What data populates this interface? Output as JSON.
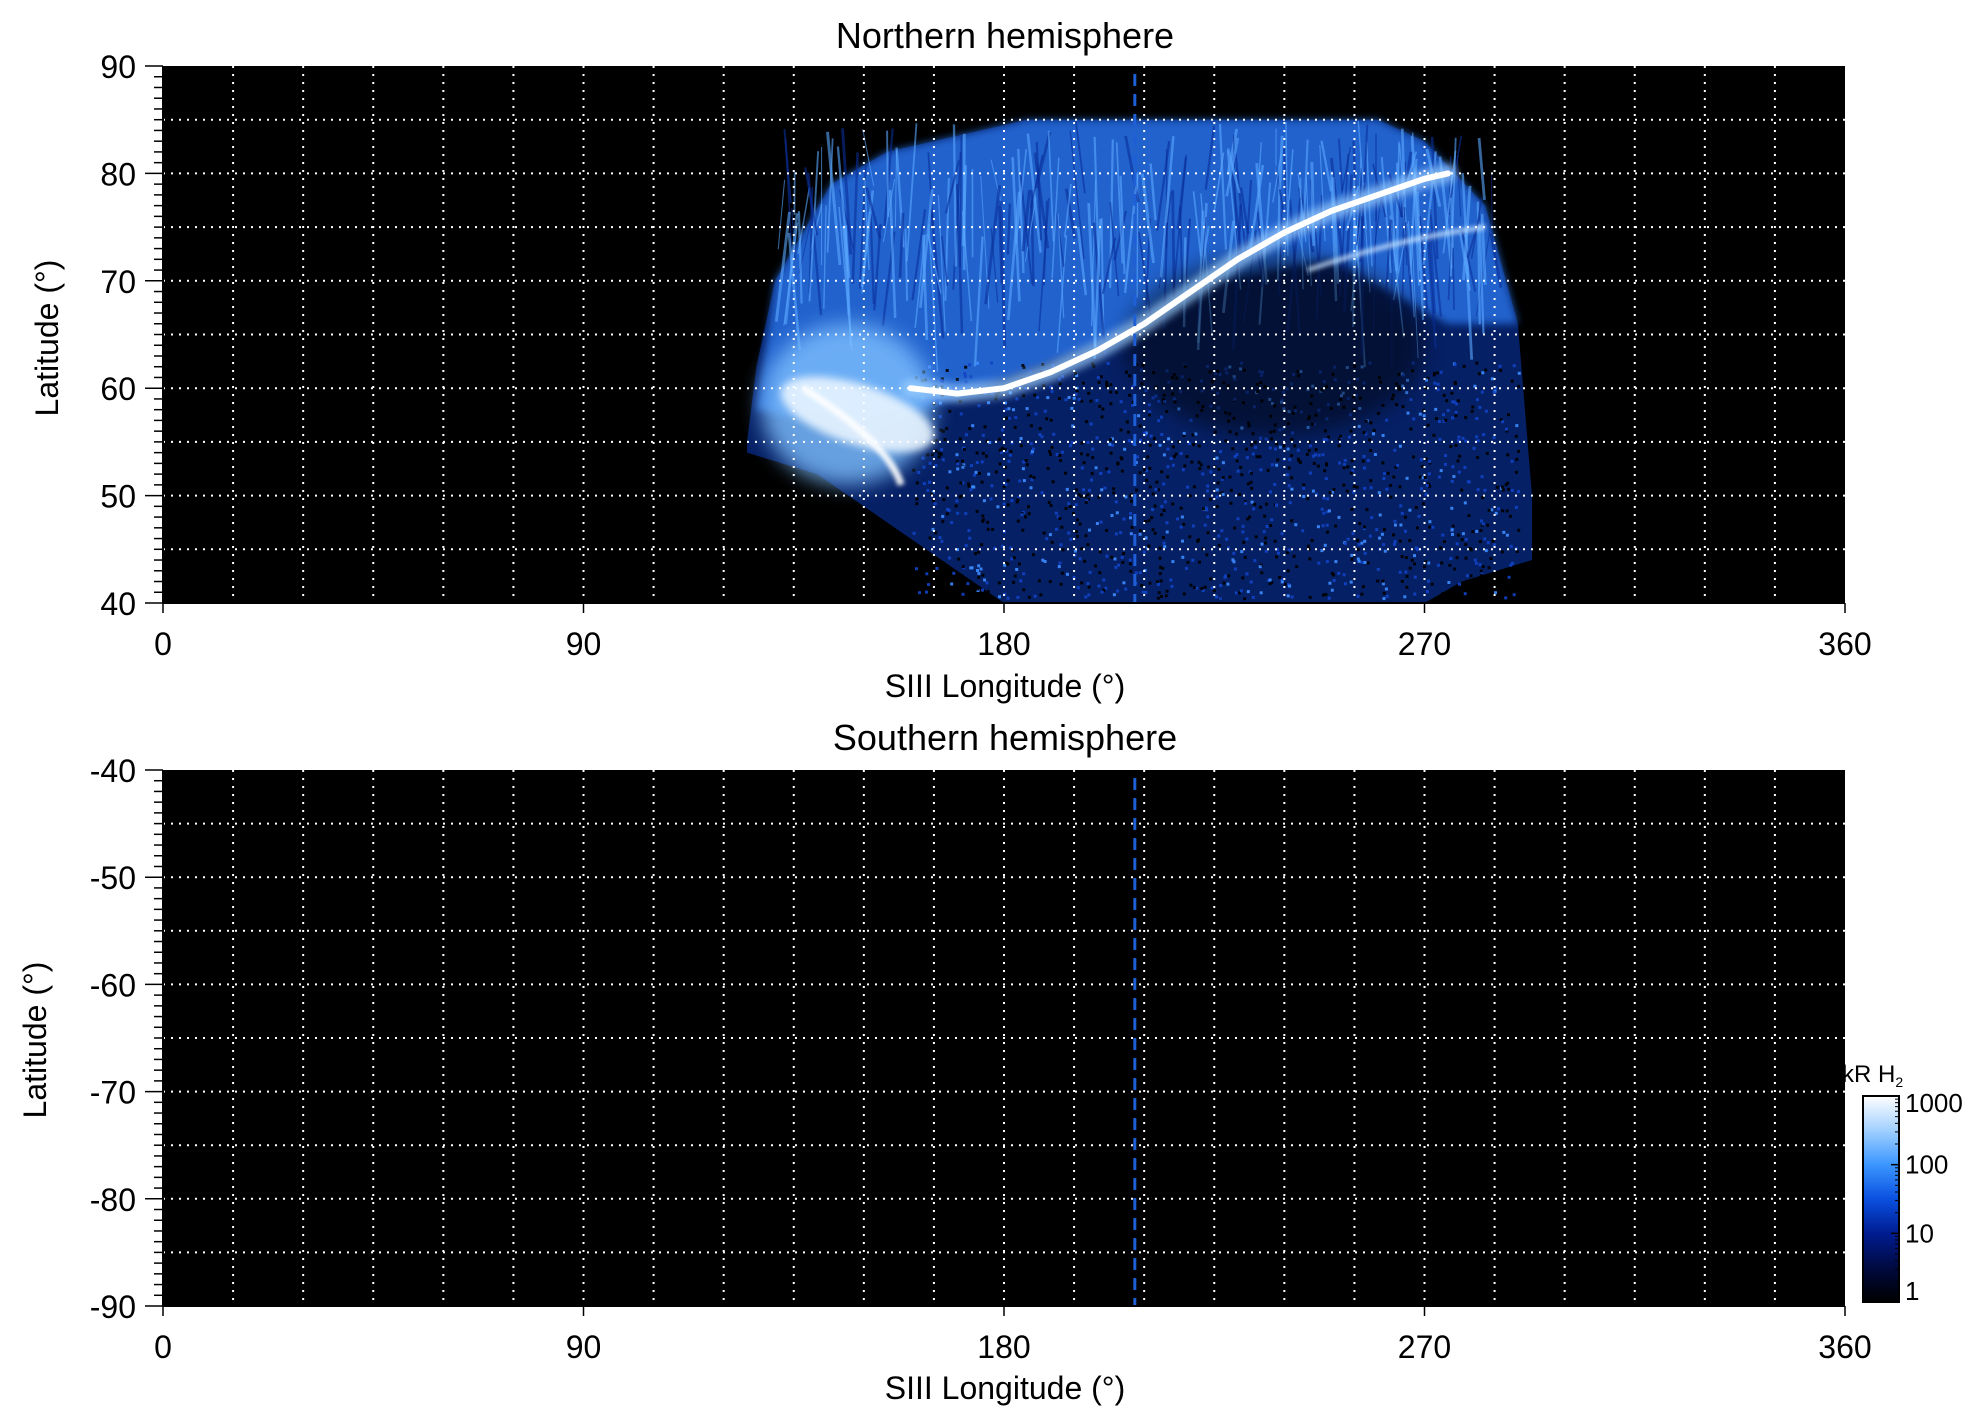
{
  "chart_data": [
    {
      "type": "heatmap",
      "title": "Northern hemisphere",
      "xlabel": "SIII Longitude (°)",
      "ylabel": "Latitude (°)",
      "xlim": [
        0,
        360
      ],
      "ylim": [
        40,
        90
      ],
      "xticks": [
        0,
        90,
        180,
        270,
        360
      ],
      "yticks": [
        40,
        50,
        60,
        70,
        80,
        90
      ],
      "grid": true,
      "grid_x_step": 15,
      "grid_y_step": 5,
      "background_color": "#000000",
      "marker_longitude": 208,
      "marker_color": "#1f5fd6",
      "coverage": {
        "lon_range": [
          125,
          293
        ],
        "lat_range": [
          40,
          85
        ]
      },
      "main_oval": [
        [
          160,
          60
        ],
        [
          170,
          59.5
        ],
        [
          180,
          60
        ],
        [
          190,
          61.5
        ],
        [
          200,
          63.5
        ],
        [
          210,
          66
        ],
        [
          220,
          69
        ],
        [
          230,
          72
        ],
        [
          240,
          74.5
        ],
        [
          250,
          76.5
        ],
        [
          260,
          78
        ],
        [
          270,
          79.5
        ],
        [
          275,
          80
        ]
      ],
      "bright_region": {
        "lon": [
          128,
          165
        ],
        "lat": [
          51,
          66
        ]
      }
    },
    {
      "type": "heatmap",
      "title": "Southern hemisphere",
      "xlabel": "SIII Longitude (°)",
      "ylabel": "Latitude (°)",
      "xlim": [
        0,
        360
      ],
      "ylim": [
        -90,
        -40
      ],
      "xticks": [
        0,
        90,
        180,
        270,
        360
      ],
      "yticks": [
        -40,
        -50,
        -60,
        -70,
        -80,
        -90
      ],
      "grid": true,
      "grid_x_step": 15,
      "grid_y_step": 5,
      "background_color": "#000000",
      "marker_longitude": 208,
      "marker_color": "#1f5fd6"
    }
  ],
  "colorbar": {
    "title_main": "kR H",
    "title_sub": "2",
    "scale": "log",
    "range": [
      1,
      1000
    ],
    "ticks": [
      "1000",
      "100",
      "10",
      "1"
    ],
    "colors": [
      "#000000",
      "#000a40",
      "#001c90",
      "#0a50e0",
      "#3c96ff",
      "#a0d0ff",
      "#ffffff"
    ]
  }
}
